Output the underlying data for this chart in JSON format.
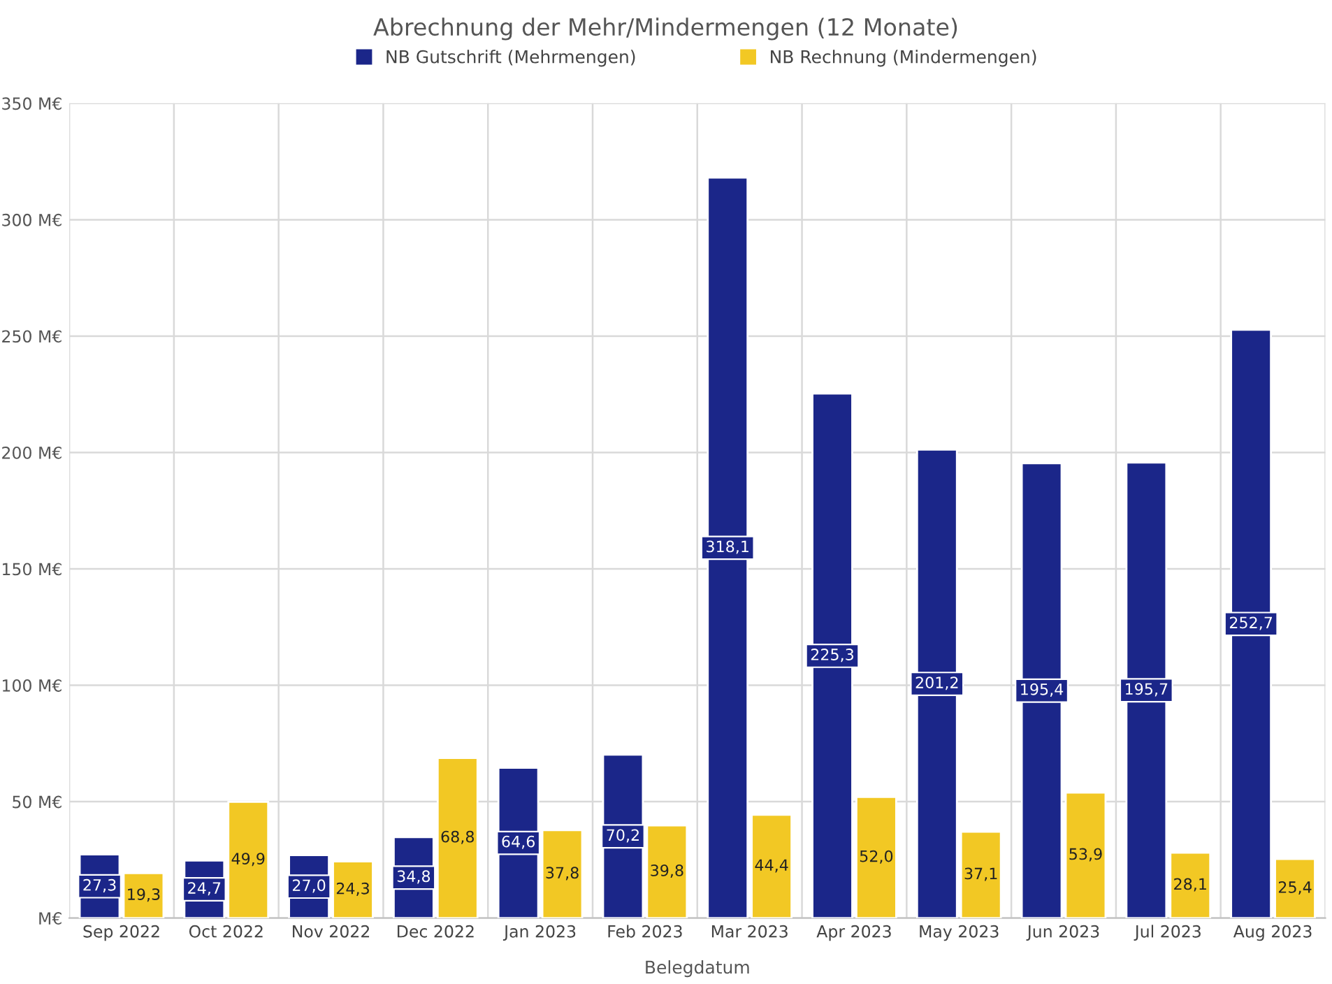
{
  "chart_data": {
    "type": "bar",
    "title": "Abrechnung der Mehr/Mindermengen (12 Monate)",
    "xlabel": "Belegdatum",
    "categories": [
      "Sep 2022",
      "Oct 2022",
      "Nov 2022",
      "Dec 2022",
      "Jan 2023",
      "Feb 2023",
      "Mar 2023",
      "Apr 2023",
      "May 2023",
      "Jun 2023",
      "Jul 2023",
      "Aug 2023"
    ],
    "series": [
      {
        "name": "NB Gutschrift (Mehrmengen)",
        "color": "#1b2689",
        "values": [
          27.3,
          24.7,
          27.0,
          34.8,
          64.6,
          70.2,
          318.1,
          225.3,
          201.2,
          195.4,
          195.7,
          252.7
        ],
        "value_labels": [
          "27,3",
          "24,7",
          "27,0",
          "34,8",
          "64,6",
          "70,2",
          "318,1",
          "225,3",
          "201,2",
          "195,4",
          "195,7",
          "252,7"
        ]
      },
      {
        "name": "NB Rechnung (Mindermengen)",
        "color": "#f2c824",
        "values": [
          19.3,
          49.9,
          24.3,
          68.8,
          37.8,
          39.8,
          44.4,
          52.0,
          37.1,
          53.9,
          28.1,
          25.4
        ],
        "value_labels": [
          "19,3",
          "49,9",
          "24,3",
          "68,8",
          "37,8",
          "39,8",
          "44,4",
          "52,0",
          "37,1",
          "53,9",
          "28,1",
          "25,4"
        ]
      }
    ],
    "ylim": [
      0,
      350
    ],
    "yticks": [
      {
        "value": 0,
        "label": "M€"
      },
      {
        "value": 50,
        "label": "50 M€"
      },
      {
        "value": 100,
        "label": "100 M€"
      },
      {
        "value": 150,
        "label": "150 M€"
      },
      {
        "value": 200,
        "label": "200 M€"
      },
      {
        "value": 250,
        "label": "250 M€"
      },
      {
        "value": 300,
        "label": "300 M€"
      },
      {
        "value": 350,
        "label": "350 M€"
      }
    ],
    "grid": true,
    "legend": "top"
  }
}
